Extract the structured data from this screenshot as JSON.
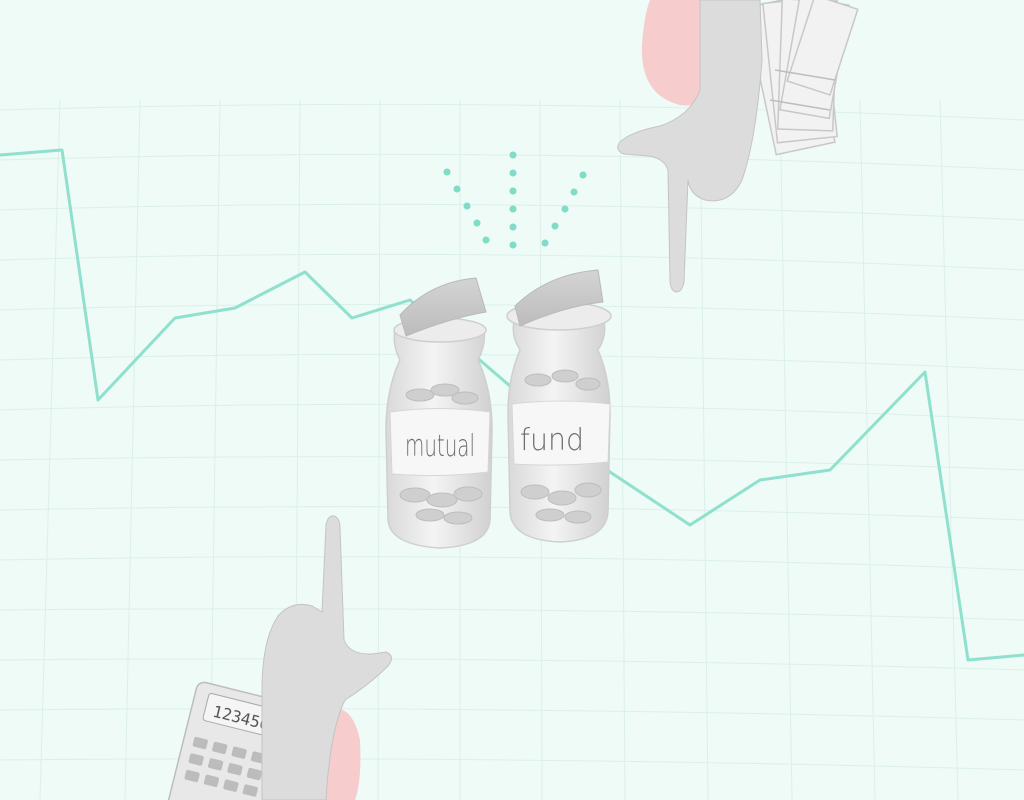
{
  "jars": {
    "left_label": "mutual",
    "right_label": "fund"
  },
  "calculator": {
    "display": "123456"
  },
  "colors": {
    "background": "#eefbf7",
    "grid_line": "#d9efe9",
    "trend_line": "#8fe0cd",
    "accent_dots": "#7fdcc6",
    "blob_pink": "#f6c9c9",
    "hand_gray": "#d6d6d6",
    "jar_glass": "#e6e6e6"
  }
}
